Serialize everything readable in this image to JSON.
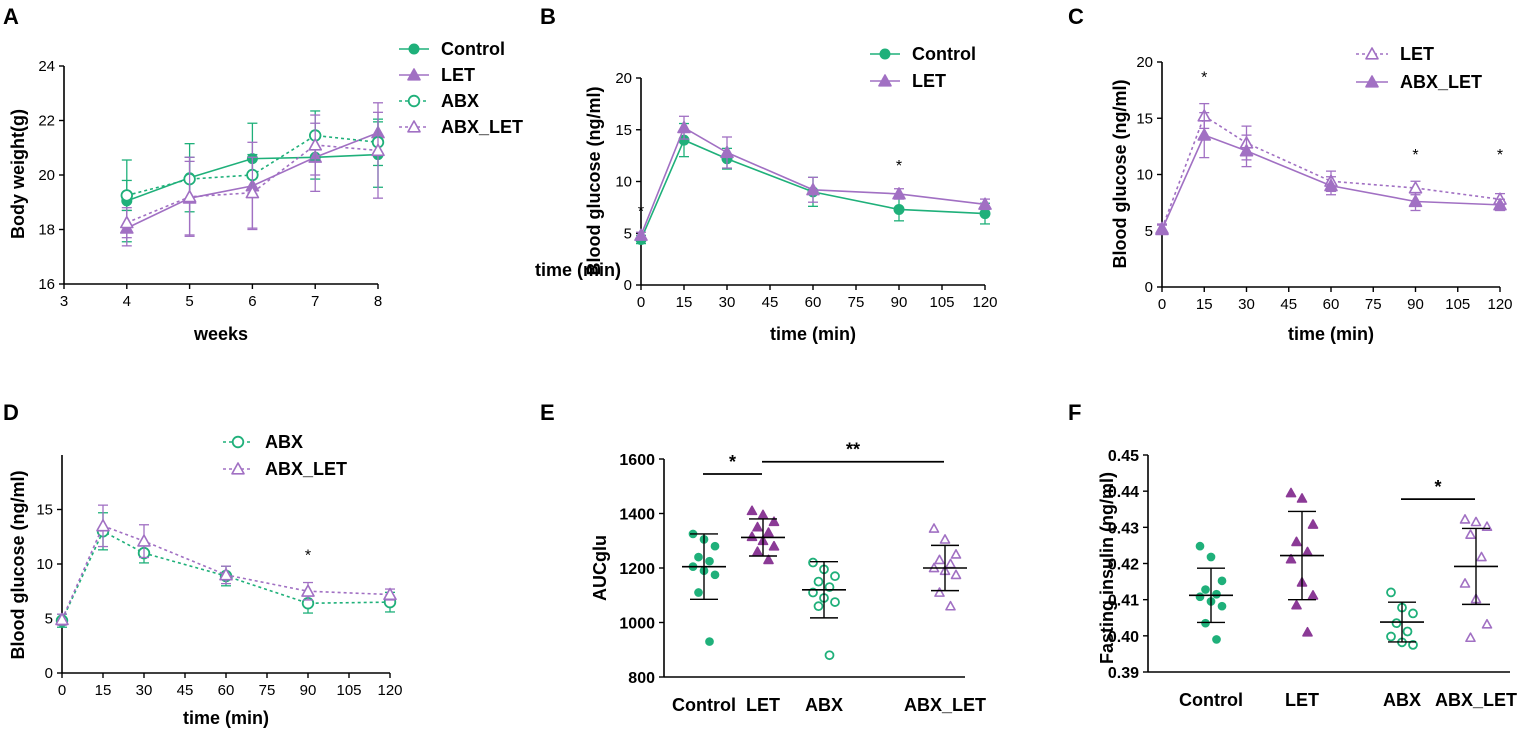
{
  "colors": {
    "green": "#1fb07a",
    "purple": "#a170c3",
    "purple_dark": "#8b3a96"
  },
  "chart_data": [
    {
      "panel": "A",
      "type": "line",
      "xlabel": "weeks",
      "ylabel": "Body weight(g)",
      "xlim": [
        3,
        8
      ],
      "ylim": [
        16,
        24
      ],
      "xticks": [
        3,
        4,
        5,
        6,
        7,
        8
      ],
      "yticks": [
        16,
        18,
        20,
        22,
        24
      ],
      "legend_position": "right",
      "x": [
        4,
        5,
        6,
        7,
        8
      ],
      "series": [
        {
          "name": "Control",
          "values": [
            19.05,
            19.9,
            20.6,
            20.65,
            20.75
          ],
          "err": [
            1.5,
            1.25,
            1.3,
            0.8,
            1.2
          ],
          "color": "#1fb07a",
          "marker": "circle-filled",
          "dash": false
        },
        {
          "name": "LET",
          "values": [
            18.05,
            19.15,
            19.6,
            20.65,
            21.55
          ],
          "err": [
            0.65,
            1.35,
            1.6,
            1.25,
            0.75
          ],
          "color": "#a170c3",
          "marker": "triangle-filled",
          "dash": false
        },
        {
          "name": "ABX",
          "values": [
            19.25,
            19.85,
            20.0,
            21.45,
            21.2
          ],
          "err": [
            0.55,
            0.8,
            0.75,
            0.9,
            0.85
          ],
          "color": "#1fb07a",
          "marker": "circle-open",
          "dash": true
        },
        {
          "name": "ABX_LET",
          "values": [
            18.25,
            19.2,
            19.35,
            21.1,
            20.9
          ],
          "err": [
            0.55,
            1.45,
            1.3,
            1.1,
            1.75
          ],
          "color": "#a170c3",
          "marker": "triangle-open",
          "dash": true
        }
      ]
    },
    {
      "panel": "B",
      "type": "line",
      "xlabel": "time (min)",
      "ylabel": "Blood glucose (ng/ml)",
      "xlim": [
        0,
        120
      ],
      "ylim": [
        0,
        20
      ],
      "xticks": [
        0,
        15,
        30,
        45,
        60,
        75,
        90,
        105,
        120
      ],
      "yticks": [
        0,
        5,
        10,
        15,
        20
      ],
      "legend_position": "top-right",
      "x": [
        0,
        15,
        30,
        60,
        90,
        120
      ],
      "series": [
        {
          "name": "Control",
          "values": [
            4.4,
            14.0,
            12.2,
            9.0,
            7.3,
            6.9
          ],
          "err": [
            0.4,
            1.6,
            1.0,
            1.4,
            1.1,
            1.0
          ],
          "color": "#1fb07a",
          "marker": "circle-filled",
          "dash": false
        },
        {
          "name": "LET",
          "values": [
            4.8,
            15.2,
            12.8,
            9.2,
            8.8,
            7.8
          ],
          "err": [
            0.3,
            1.1,
            1.5,
            1.2,
            0.5,
            0.5
          ],
          "color": "#a170c3",
          "marker": "triangle-filled",
          "dash": false
        }
      ],
      "overlay_text": "time (min)",
      "significance": [
        {
          "x": 0,
          "y": 6.6,
          "label": "*"
        },
        {
          "x": 90,
          "y": 11.0,
          "label": "*"
        }
      ]
    },
    {
      "panel": "C",
      "type": "line",
      "xlabel": "time (min)",
      "ylabel": "Blood glucose (ng/ml)",
      "xlim": [
        0,
        120
      ],
      "ylim": [
        0,
        20
      ],
      "xticks": [
        0,
        15,
        30,
        45,
        60,
        75,
        90,
        105,
        120
      ],
      "yticks": [
        0,
        5,
        10,
        15,
        20
      ],
      "legend_position": "top-right",
      "x": [
        0,
        15,
        30,
        60,
        90,
        120
      ],
      "series": [
        {
          "name": "LET",
          "values": [
            5.2,
            15.2,
            12.8,
            9.4,
            8.8,
            7.8
          ],
          "err": [
            0.4,
            1.1,
            1.5,
            0.9,
            0.6,
            0.5
          ],
          "color": "#a170c3",
          "marker": "triangle-open",
          "dash": true
        },
        {
          "name": "ABX_LET",
          "values": [
            5.1,
            13.5,
            12.1,
            9.0,
            7.6,
            7.3
          ],
          "err": [
            0.4,
            2.0,
            1.4,
            0.8,
            0.8,
            0.5
          ],
          "color": "#a170c3",
          "marker": "triangle-filled",
          "dash": false
        }
      ],
      "significance": [
        {
          "x": 15,
          "y": 18.2,
          "label": "*"
        },
        {
          "x": 90,
          "y": 11.3,
          "label": "*"
        },
        {
          "x": 120,
          "y": 11.3,
          "label": "*"
        }
      ]
    },
    {
      "panel": "D",
      "type": "line",
      "xlabel": "time (min)",
      "ylabel": "Blood glucose (ng/ml)",
      "xlim": [
        0,
        120
      ],
      "ylim": [
        0,
        20
      ],
      "xticks": [
        0,
        15,
        30,
        45,
        60,
        75,
        90,
        105,
        120
      ],
      "yticks": [
        0,
        5,
        10,
        15
      ],
      "legend_position": "top-right",
      "x": [
        0,
        15,
        30,
        60,
        90,
        120
      ],
      "series": [
        {
          "name": "ABX",
          "values": [
            4.8,
            13.0,
            11.0,
            8.9,
            6.4,
            6.5
          ],
          "err": [
            0.6,
            1.7,
            0.9,
            0.9,
            0.9,
            0.9
          ],
          "color": "#1fb07a",
          "marker": "circle-open",
          "dash": true
        },
        {
          "name": "ABX_LET",
          "values": [
            4.9,
            13.5,
            12.1,
            9.0,
            7.5,
            7.2
          ],
          "err": [
            0.5,
            1.9,
            1.5,
            0.8,
            0.8,
            0.5
          ],
          "color": "#a170c3",
          "marker": "triangle-open",
          "dash": true
        }
      ],
      "significance": [
        {
          "x": 90,
          "y": 10.3,
          "label": "*"
        }
      ]
    },
    {
      "panel": "E",
      "type": "scatter",
      "ylabel": "AUCglu",
      "ylim": [
        800,
        1600
      ],
      "yticks": [
        800,
        1000,
        1200,
        1400,
        1600
      ],
      "categories": [
        "Control",
        "LET",
        "ABX",
        "ABX_LET"
      ],
      "groups": [
        {
          "name": "Control",
          "mean": 1205,
          "sd": 120,
          "color": "#1fb07a",
          "marker": "circle-filled",
          "points": [
            1325,
            1305,
            1280,
            1240,
            1225,
            1205,
            1190,
            1175,
            1110,
            930
          ]
        },
        {
          "name": "LET",
          "mean": 1312,
          "sd": 68,
          "color": "#8b3a96",
          "marker": "triangle-filled",
          "points": [
            1410,
            1395,
            1370,
            1350,
            1330,
            1315,
            1300,
            1280,
            1260,
            1230
          ]
        },
        {
          "name": "ABX",
          "mean": 1120,
          "sd": 103,
          "color": "#1fb07a",
          "marker": "circle-open",
          "points": [
            1220,
            1195,
            1170,
            1150,
            1130,
            1110,
            1090,
            1075,
            1060,
            880
          ]
        },
        {
          "name": "ABX_LET",
          "mean": 1200,
          "sd": 83,
          "color": "#a170c3",
          "marker": "triangle-open",
          "points": [
            1345,
            1305,
            1250,
            1230,
            1215,
            1200,
            1190,
            1175,
            1110,
            1060
          ]
        }
      ],
      "significance": [
        {
          "from": 0,
          "to": 1,
          "y": 1545,
          "label": "*"
        },
        {
          "from": 1,
          "to": 3,
          "y": 1590,
          "label": "**"
        }
      ]
    },
    {
      "panel": "F",
      "type": "scatter",
      "ylabel": "Fasting insulin (ng/ml)",
      "ylim": [
        0.39,
        0.45
      ],
      "yticks": [
        0.39,
        0.4,
        0.41,
        0.42,
        0.43,
        0.44,
        0.45
      ],
      "ytick_labels": [
        "0.39",
        "0.40",
        "0.41",
        "0.42",
        "0.43",
        "0.44",
        "0.45"
      ],
      "categories": [
        "Control",
        "LET",
        "ABX",
        "ABX_LET"
      ],
      "groups": [
        {
          "name": "Control",
          "mean": 0.4112,
          "sd": 0.0075,
          "color": "#1fb07a",
          "marker": "circle-filled",
          "points": [
            0.4248,
            0.4218,
            0.4152,
            0.4128,
            0.4115,
            0.4108,
            0.4095,
            0.4082,
            0.4035,
            0.399
          ]
        },
        {
          "name": "LET",
          "mean": 0.4222,
          "sd": 0.0122,
          "color": "#8b3a96",
          "marker": "triangle-filled",
          "points": [
            0.4395,
            0.438,
            0.4308,
            0.426,
            0.4232,
            0.4212,
            0.4148,
            0.4112,
            0.4085,
            0.401
          ]
        },
        {
          "name": "ABX",
          "mean": 0.4038,
          "sd": 0.0055,
          "color": "#1fb07a",
          "marker": "circle-open",
          "points": [
            0.412,
            0.4078,
            0.4062,
            0.4035,
            0.4012,
            0.3998,
            0.3982,
            0.3975
          ]
        },
        {
          "name": "ABX_LET",
          "mean": 0.4192,
          "sd": 0.0105,
          "color": "#a170c3",
          "marker": "triangle-open",
          "points": [
            0.4322,
            0.4315,
            0.4302,
            0.428,
            0.4218,
            0.4145,
            0.4102,
            0.4032,
            0.3995
          ]
        }
      ],
      "significance": [
        {
          "from": 2,
          "to": 3,
          "y": 0.4378,
          "label": "*"
        }
      ]
    }
  ]
}
